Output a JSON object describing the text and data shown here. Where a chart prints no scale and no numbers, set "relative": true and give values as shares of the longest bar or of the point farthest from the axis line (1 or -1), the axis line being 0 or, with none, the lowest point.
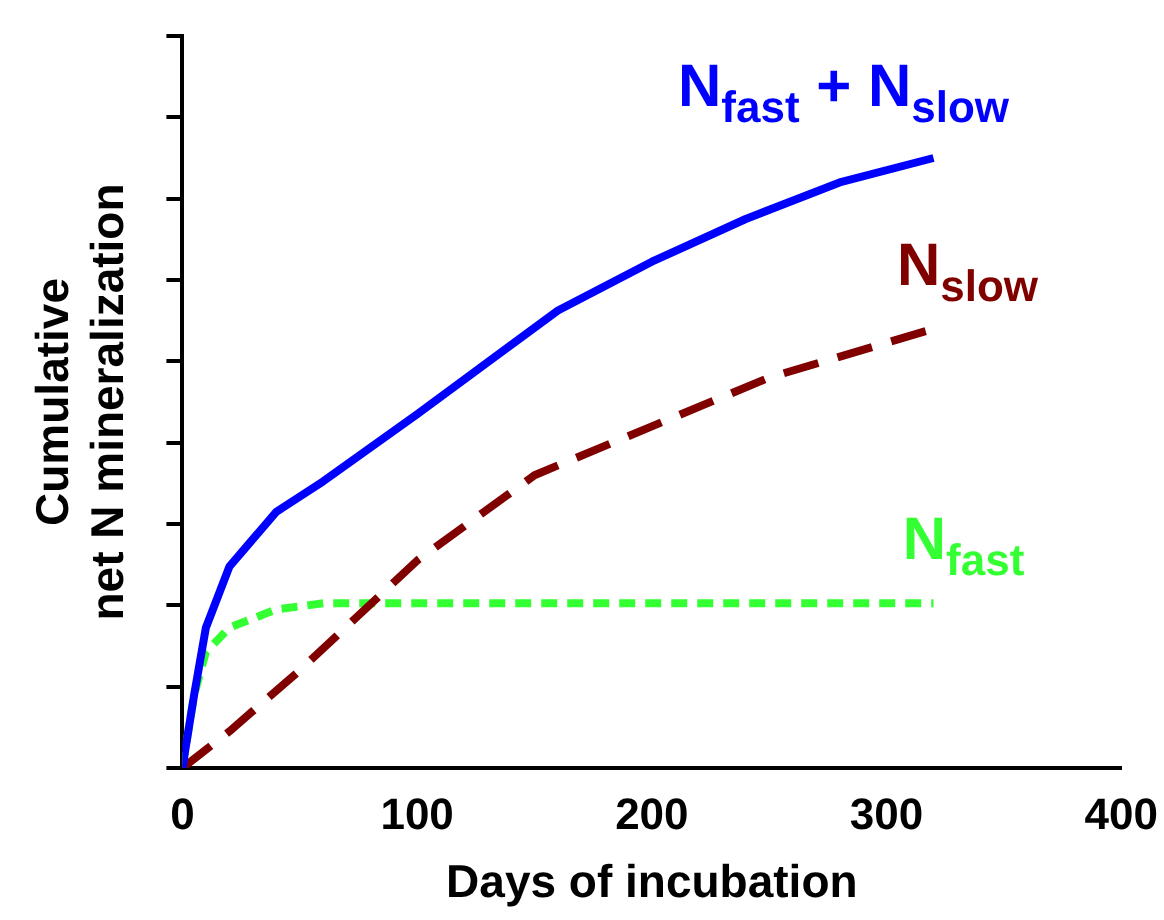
{
  "chart_data": {
    "type": "line",
    "xlabel": "Days of incubation",
    "ylabel": "Cumulative\nnet N mineralization",
    "relative": true,
    "xlim": [
      0,
      400
    ],
    "xticks": [
      0,
      100,
      200,
      300,
      400
    ],
    "grid": false,
    "legend": false,
    "marker": "none",
    "tick_labels": "x",
    "series": [
      {
        "name": "N$_{fast}$ + N$_{slow}$",
        "color": "#0000ff",
        "line_style": "solid",
        "x": [
          0,
          5,
          10,
          20,
          40,
          60,
          100,
          160,
          200,
          240,
          280,
          320
        ],
        "values": [
          0,
          0.12,
          0.23,
          0.33,
          0.42,
          0.47,
          0.58,
          0.75,
          0.83,
          0.9,
          0.96,
          1
        ]
      },
      {
        "name": "N$_{slow}$",
        "color": "#800000",
        "line_style": "dashed",
        "x": [
          0,
          20,
          50,
          100,
          150,
          200,
          250,
          320
        ],
        "values": [
          0,
          0.06,
          0.16,
          0.34,
          0.48,
          0.56,
          0.64,
          0.72
        ]
      },
      {
        "name": "N$_{fast}$",
        "color": "#33ff33",
        "line_style": "dotted",
        "x": [
          0,
          5,
          10,
          20,
          40,
          60,
          100,
          200,
          320
        ],
        "values": [
          0,
          0.12,
          0.19,
          0.23,
          0.26,
          0.27,
          0.27,
          0.27,
          0.27
        ]
      }
    ]
  }
}
